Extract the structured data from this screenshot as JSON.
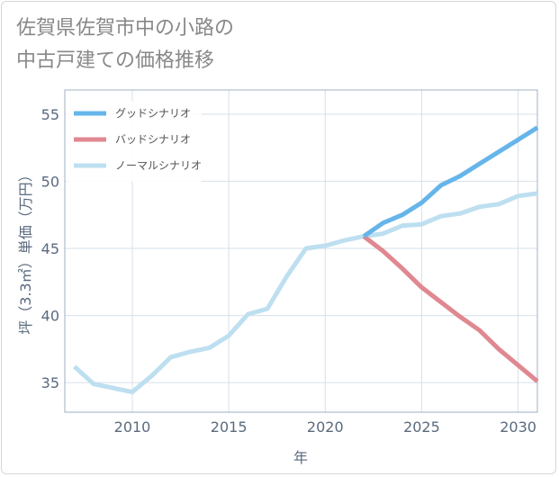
{
  "title_lines": [
    "佐賀県佐賀市中の小路の",
    "中古戸建ての価格推移"
  ],
  "chart_data": {
    "type": "line",
    "title": "佐賀県佐賀市中の小路の中古戸建ての価格推移",
    "xlabel": "年",
    "ylabel": "坪（3.3㎡）単価（万円）",
    "xlim": [
      2006.5,
      2031
    ],
    "ylim": [
      32.8,
      56.8
    ],
    "x_ticks": [
      2010,
      2015,
      2020,
      2025,
      2030
    ],
    "y_ticks": [
      35,
      40,
      45,
      50,
      55
    ],
    "grid": true,
    "legend_position": "top-left",
    "series": [
      {
        "name": "グッドシナリオ",
        "color": "#66b5ea",
        "x": [
          2022,
          2023,
          2024,
          2025,
          2026,
          2027,
          2028,
          2029,
          2030,
          2031
        ],
        "y": [
          45.9,
          46.9,
          47.5,
          48.4,
          49.7,
          50.4,
          51.3,
          52.2,
          53.1,
          54.0
        ]
      },
      {
        "name": "バッドシナリオ",
        "color": "#e08890",
        "x": [
          2022,
          2023,
          2024,
          2025,
          2026,
          2027,
          2028,
          2029,
          2030,
          2031
        ],
        "y": [
          45.9,
          44.8,
          43.5,
          42.1,
          41.0,
          39.9,
          38.9,
          37.5,
          36.3,
          35.1
        ]
      },
      {
        "name": "ノーマルシナリオ",
        "color": "#bddff0",
        "x": [
          2007,
          2008,
          2009,
          2010,
          2011,
          2012,
          2013,
          2014,
          2015,
          2016,
          2017,
          2018,
          2019,
          2020,
          2021,
          2022,
          2023,
          2024,
          2025,
          2026,
          2027,
          2028,
          2029,
          2030,
          2031
        ],
        "y": [
          36.2,
          34.9,
          34.6,
          34.3,
          35.5,
          36.9,
          37.3,
          37.6,
          38.5,
          40.1,
          40.5,
          42.9,
          45.0,
          45.2,
          45.6,
          45.9,
          46.1,
          46.7,
          46.8,
          47.4,
          47.6,
          48.1,
          48.3,
          48.9,
          49.1
        ]
      }
    ]
  }
}
